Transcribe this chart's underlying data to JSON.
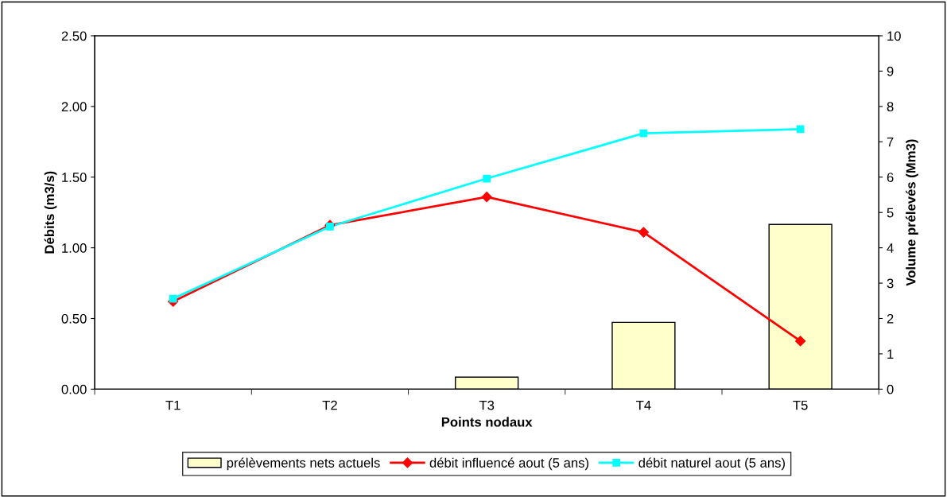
{
  "chart_data": {
    "type": "line",
    "xlabel": "Points nodaux",
    "ylabel": "Débits (m3/s)",
    "y2label": "Volume prélevés (Mm3)",
    "categories": [
      "T1",
      "T2",
      "T3",
      "T4",
      "T5"
    ],
    "series": [
      {
        "name": "prélèvements nets actuels",
        "type": "bar",
        "axis": "y2",
        "color": "#ffffcc",
        "values": [
          null,
          null,
          0.34,
          1.89,
          4.66
        ]
      },
      {
        "name": "débit influencé aout (5 ans)",
        "color": "#ff0000",
        "marker": "diamond",
        "values": [
          0.62,
          1.16,
          1.36,
          1.11,
          0.34
        ]
      },
      {
        "name": "débit naturel aout (5 ans)",
        "color": "#00ffff",
        "marker": "square",
        "values": [
          0.64,
          1.15,
          1.49,
          1.81,
          1.84
        ]
      }
    ],
    "ylim": [
      0,
      2.5
    ],
    "yticks": [
      {
        "value": 0,
        "label": "0.00"
      },
      {
        "value": 0.5,
        "label": "0.50"
      },
      {
        "value": 1,
        "label": "1.00"
      },
      {
        "value": 1.5,
        "label": "1.50"
      },
      {
        "value": 2,
        "label": "2.00"
      },
      {
        "value": 2.5,
        "label": "2.50"
      }
    ],
    "y2lim": [
      0,
      10
    ],
    "y2ticks": [
      0,
      1,
      2,
      3,
      4,
      5,
      6,
      7,
      8,
      9,
      10
    ],
    "grid": false,
    "legend": "bottom",
    "line_style": "solid"
  }
}
